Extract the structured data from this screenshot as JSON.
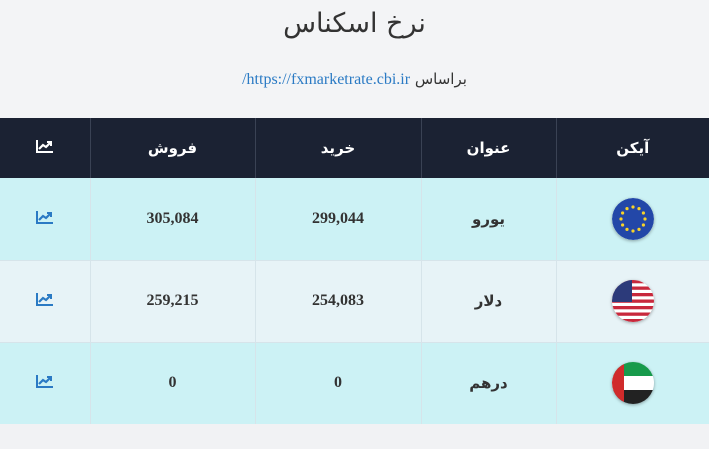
{
  "header": {
    "title": "نرخ اسکناس",
    "source_prefix": "براساس",
    "source_link": "https://fxmarketrate.cbi.ir/"
  },
  "table": {
    "columns": [
      "آیکن",
      "عنوان",
      "خرید",
      "فروش"
    ],
    "chart_icon": "chart-line-icon",
    "rows": [
      {
        "flag": "eu-flag-icon",
        "name": "یورو",
        "buy": "299,044",
        "sell": "305,084"
      },
      {
        "flag": "us-flag-icon",
        "name": "دلار",
        "buy": "254,083",
        "sell": "259,215"
      },
      {
        "flag": "uae-flag-icon",
        "name": "درهم",
        "buy": "0",
        "sell": "0"
      }
    ]
  },
  "colors": {
    "header_bg": "#1b2233",
    "row_odd": "#ccf2f5",
    "row_even": "#e7f3f7",
    "link": "#2a7ac4",
    "chart_icon_row": "#2a7ac4",
    "chart_icon_header": "#ffffff"
  }
}
